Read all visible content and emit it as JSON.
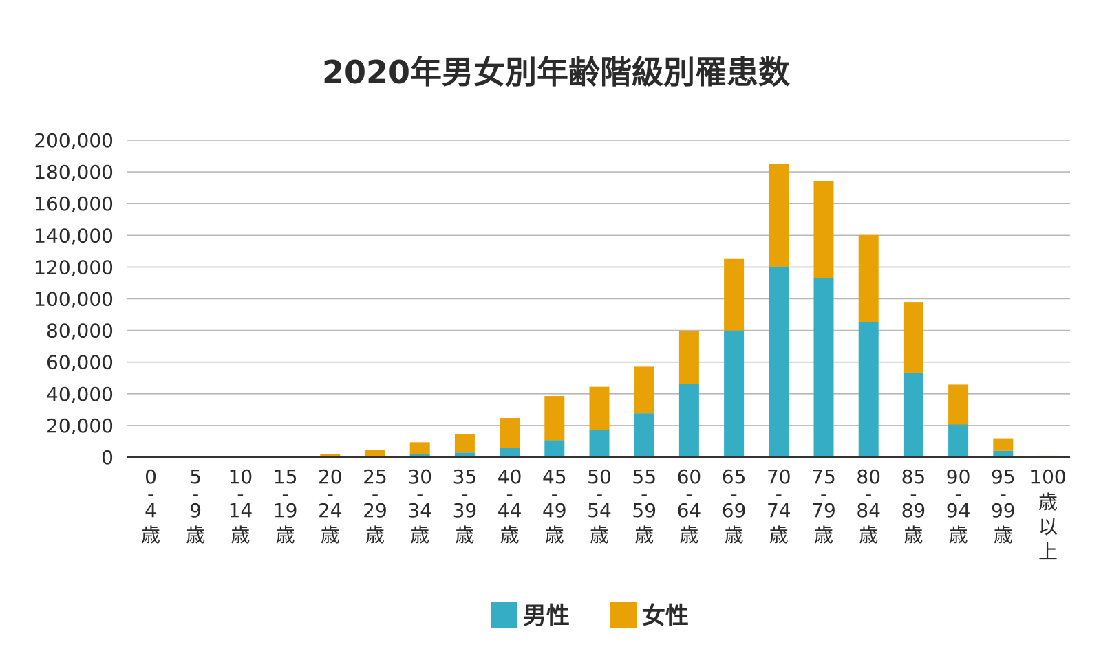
{
  "chart_data": {
    "type": "bar",
    "stacked": true,
    "title": "2020年男女別年齢階級別罹患数",
    "xlabel": "",
    "ylabel": "",
    "ylim": [
      0,
      200000
    ],
    "yticks": [
      "0",
      "20,000",
      "40,000",
      "60,000",
      "80,000",
      "100,000",
      "120,000",
      "140,000",
      "160,000",
      "180,000",
      "200,000"
    ],
    "categories": [
      [
        "0",
        "-",
        "4",
        "歳"
      ],
      [
        "5",
        "-",
        "9",
        "歳"
      ],
      [
        "10",
        "-",
        "14",
        "歳"
      ],
      [
        "15",
        "-",
        "19",
        "歳"
      ],
      [
        "20",
        "-",
        "24",
        "歳"
      ],
      [
        "25",
        "-",
        "29",
        "歳"
      ],
      [
        "30",
        "-",
        "34",
        "歳"
      ],
      [
        "35",
        "-",
        "39",
        "歳"
      ],
      [
        "40",
        "-",
        "44",
        "歳"
      ],
      [
        "45",
        "-",
        "49",
        "歳"
      ],
      [
        "50",
        "-",
        "54",
        "歳"
      ],
      [
        "55",
        "-",
        "59",
        "歳"
      ],
      [
        "60",
        "-",
        "64",
        "歳"
      ],
      [
        "65",
        "-",
        "69",
        "歳"
      ],
      [
        "70",
        "-",
        "74",
        "歳"
      ],
      [
        "75",
        "-",
        "79",
        "歳"
      ],
      [
        "80",
        "-",
        "84",
        "歳"
      ],
      [
        "85",
        "-",
        "89",
        "歳"
      ],
      [
        "90",
        "-",
        "94",
        "歳"
      ],
      [
        "95",
        "-",
        "99",
        "歳"
      ],
      [
        "100",
        "歳",
        "以",
        "上"
      ]
    ],
    "series": [
      {
        "name": "男性",
        "color": "#35aec5",
        "values": [
          150,
          120,
          130,
          250,
          450,
          600,
          1800,
          2900,
          5900,
          10700,
          17000,
          27700,
          46200,
          80000,
          120300,
          113000,
          85300,
          53400,
          20600,
          4000,
          250
        ]
      },
      {
        "name": "女性",
        "color": "#e8a205",
        "values": [
          120,
          100,
          110,
          250,
          1600,
          3900,
          7600,
          11400,
          18800,
          27900,
          27400,
          29400,
          33400,
          45500,
          64700,
          61000,
          55000,
          44600,
          25200,
          7900,
          650
        ]
      }
    ],
    "grid": true,
    "legend_position": "bottom-center"
  }
}
